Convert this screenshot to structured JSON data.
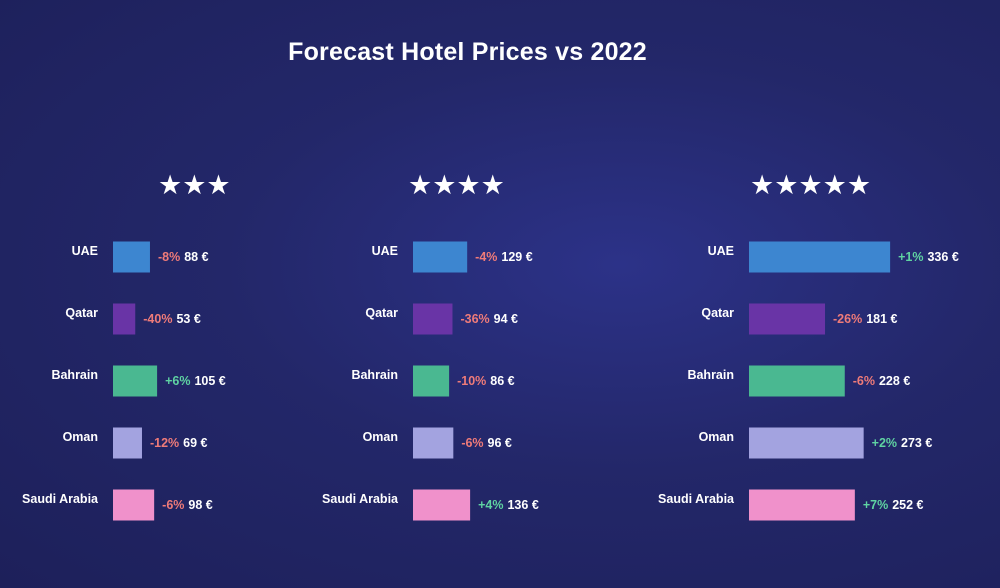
{
  "title": "Forecast Hotel Prices vs 2022",
  "colors": {
    "UAE": "#3d86d0",
    "Qatar": "#6934a6",
    "Bahrain": "#4ab891",
    "Oman": "#a3a3e0",
    "Saudi Arabia": "#f091cb",
    "negative": "#ef7b79",
    "positive": "#5fd3a2",
    "value": "#ffffff"
  },
  "chart_data": [
    {
      "type": "bar",
      "orientation": "horizontal",
      "title": "★★★",
      "categories": [
        "UAE",
        "Qatar",
        "Bahrain",
        "Oman",
        "Saudi Arabia"
      ],
      "values": [
        88,
        53,
        105,
        69,
        98
      ],
      "value_labels": [
        "88 €",
        "53 €",
        "105 €",
        "69 €",
        "98 €"
      ],
      "change_labels": [
        "-8%",
        "-40%",
        "+6%",
        "-12%",
        "-6%"
      ],
      "unit": "€"
    },
    {
      "type": "bar",
      "orientation": "horizontal",
      "title": "★★★★",
      "categories": [
        "UAE",
        "Qatar",
        "Bahrain",
        "Oman",
        "Saudi Arabia"
      ],
      "values": [
        129,
        94,
        86,
        96,
        136
      ],
      "value_labels": [
        "129 €",
        "94 €",
        "86 €",
        "96 €",
        "136 €"
      ],
      "change_labels": [
        "-4%",
        "-36%",
        "-10%",
        "-6%",
        "+4%"
      ],
      "unit": "€"
    },
    {
      "type": "bar",
      "orientation": "horizontal",
      "title": "★★★★★",
      "categories": [
        "UAE",
        "Qatar",
        "Bahrain",
        "Oman",
        "Saudi Arabia"
      ],
      "values": [
        336,
        181,
        228,
        273,
        252
      ],
      "value_labels": [
        "336 €",
        "181 €",
        "228 €",
        "273 €",
        "252 €"
      ],
      "change_labels": [
        "+1%",
        "-26%",
        "-6%",
        "+2%",
        "+7%"
      ],
      "unit": "€"
    }
  ]
}
